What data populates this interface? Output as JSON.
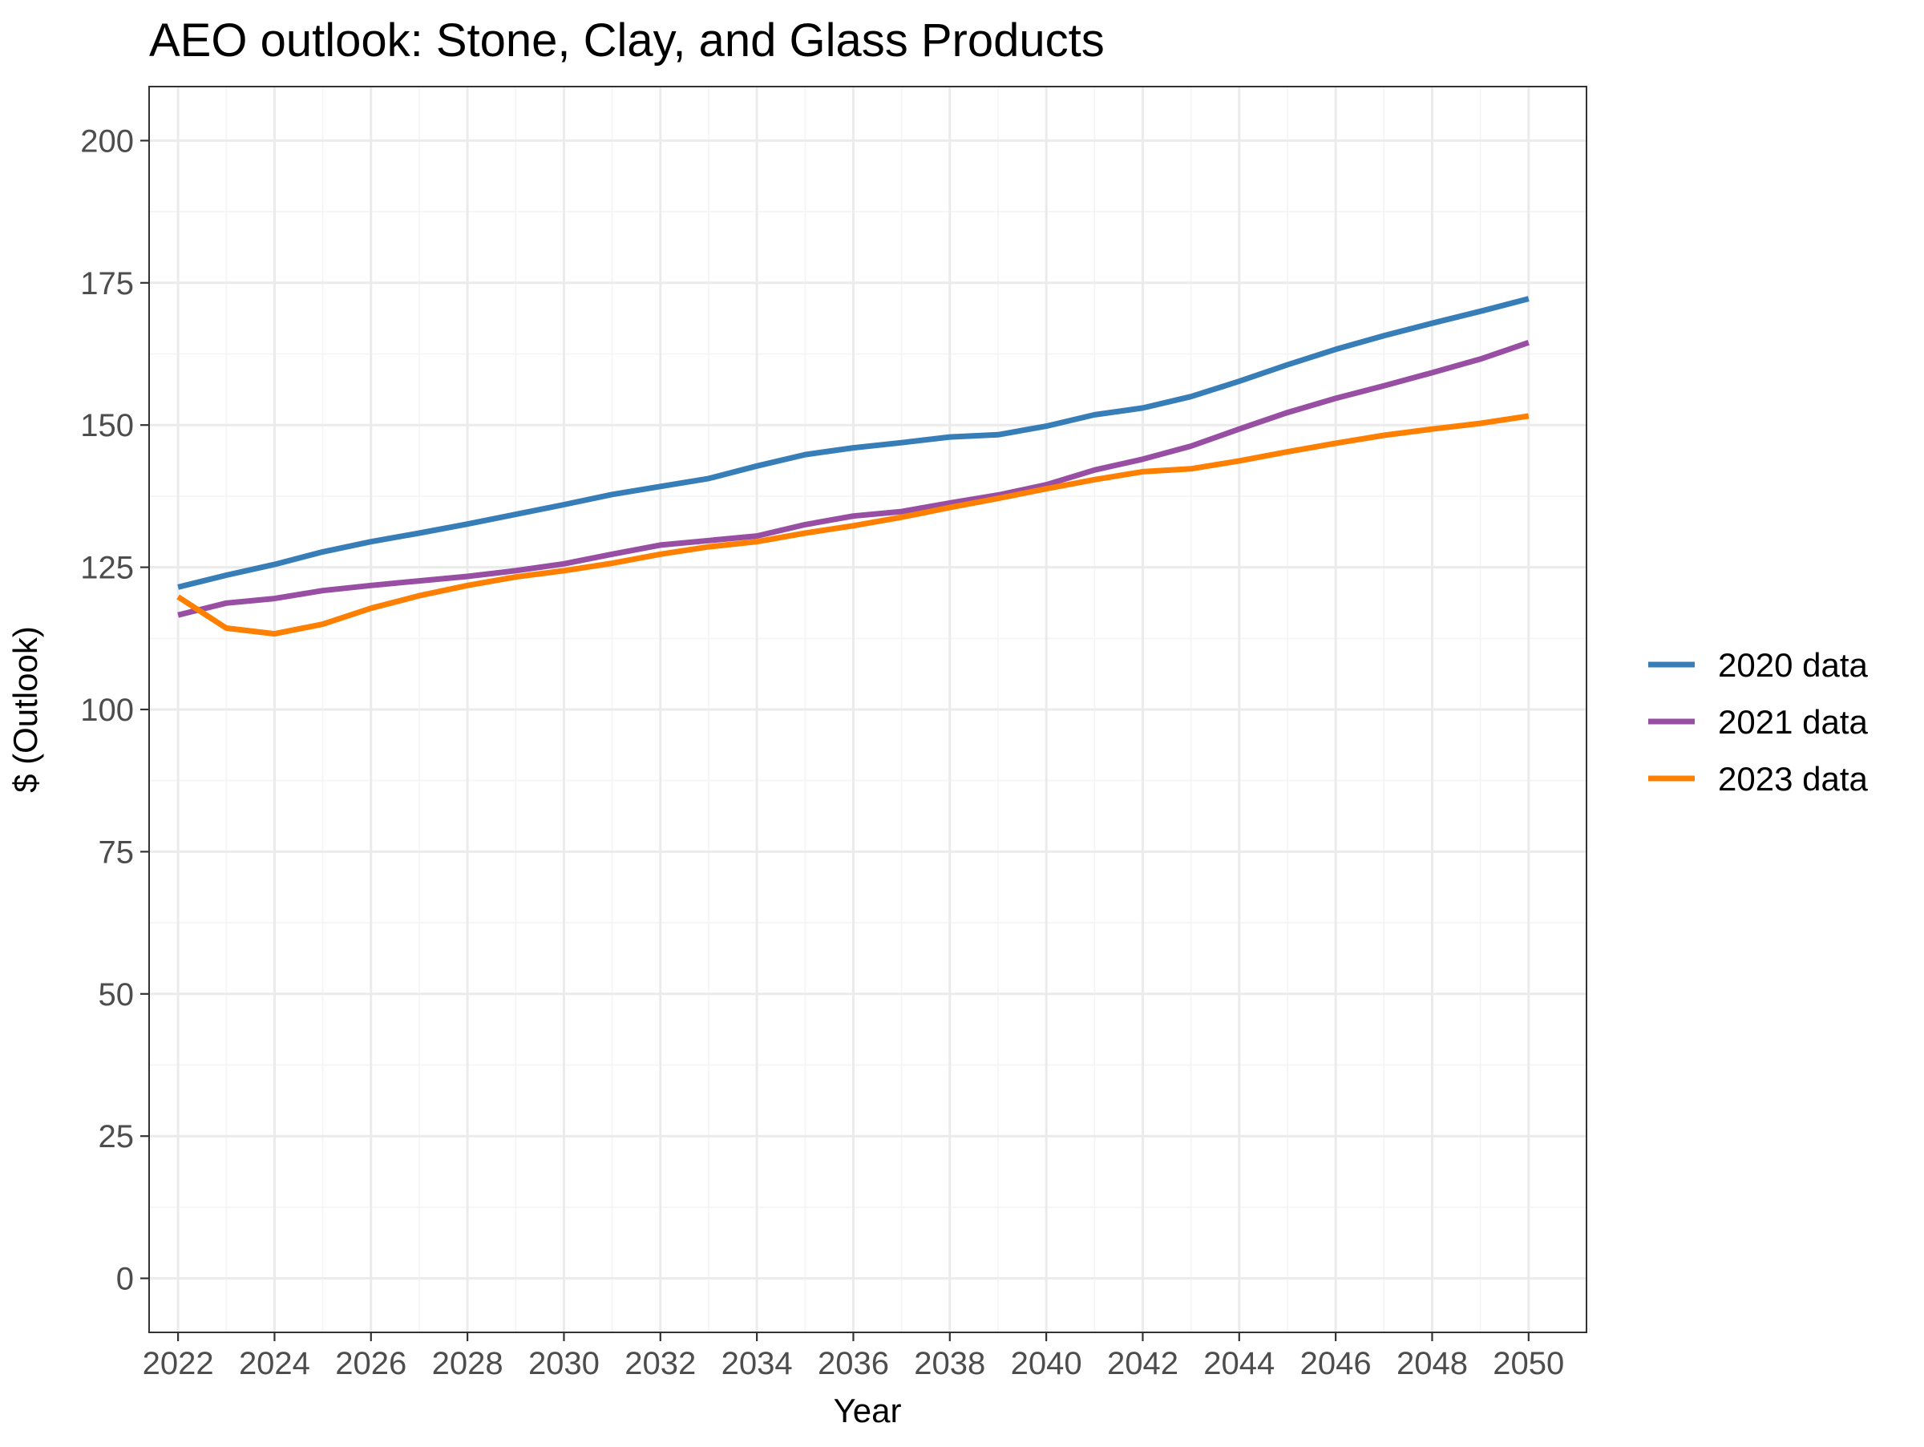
{
  "chart_data": {
    "type": "line",
    "title": "AEO outlook: Stone, Clay, and Glass Products",
    "xlabel": "Year",
    "ylabel": "$ (Outlook)",
    "xlim": [
      2021.4,
      2051.2
    ],
    "ylim": [
      -9.5,
      209.5
    ],
    "x_ticks": [
      2022,
      2024,
      2026,
      2028,
      2030,
      2032,
      2034,
      2036,
      2038,
      2040,
      2042,
      2044,
      2046,
      2048,
      2050
    ],
    "y_ticks": [
      0,
      25,
      50,
      75,
      100,
      125,
      150,
      175,
      200
    ],
    "grid": true,
    "legend_position": "right",
    "x": [
      2022,
      2023,
      2024,
      2025,
      2026,
      2027,
      2028,
      2029,
      2030,
      2031,
      2032,
      2033,
      2034,
      2035,
      2036,
      2037,
      2038,
      2039,
      2040,
      2041,
      2042,
      2043,
      2044,
      2045,
      2046,
      2047,
      2048,
      2049,
      2050
    ],
    "series": [
      {
        "name": "2020 data",
        "color": "#377eb8",
        "values": [
          121.5,
          123.6,
          125.5,
          127.7,
          129.5,
          131.0,
          132.6,
          134.3,
          136.0,
          137.8,
          139.2,
          140.6,
          142.8,
          144.8,
          146.0,
          146.9,
          147.9,
          148.3,
          149.8,
          151.8,
          153.0,
          155.0,
          157.7,
          160.6,
          163.3,
          165.7,
          167.9,
          170.0,
          172.2
        ]
      },
      {
        "name": "2021 data",
        "color": "#984ea3",
        "values": [
          116.6,
          118.7,
          119.5,
          120.9,
          121.8,
          122.6,
          123.4,
          124.4,
          125.6,
          127.3,
          128.9,
          129.7,
          130.5,
          132.5,
          134.0,
          134.8,
          136.3,
          137.7,
          139.5,
          142.1,
          144.0,
          146.3,
          149.3,
          152.2,
          154.7,
          156.9,
          159.2,
          161.6,
          164.5
        ]
      },
      {
        "name": "2023 data",
        "color": "#ff7f00",
        "values": [
          119.8,
          114.3,
          113.3,
          115.0,
          117.8,
          120.0,
          121.8,
          123.3,
          124.4,
          125.7,
          127.3,
          128.6,
          129.5,
          131.0,
          132.3,
          133.8,
          135.5,
          137.1,
          138.8,
          140.4,
          141.8,
          142.3,
          143.7,
          145.3,
          146.8,
          148.2,
          149.3,
          150.3,
          151.6
        ]
      }
    ]
  }
}
